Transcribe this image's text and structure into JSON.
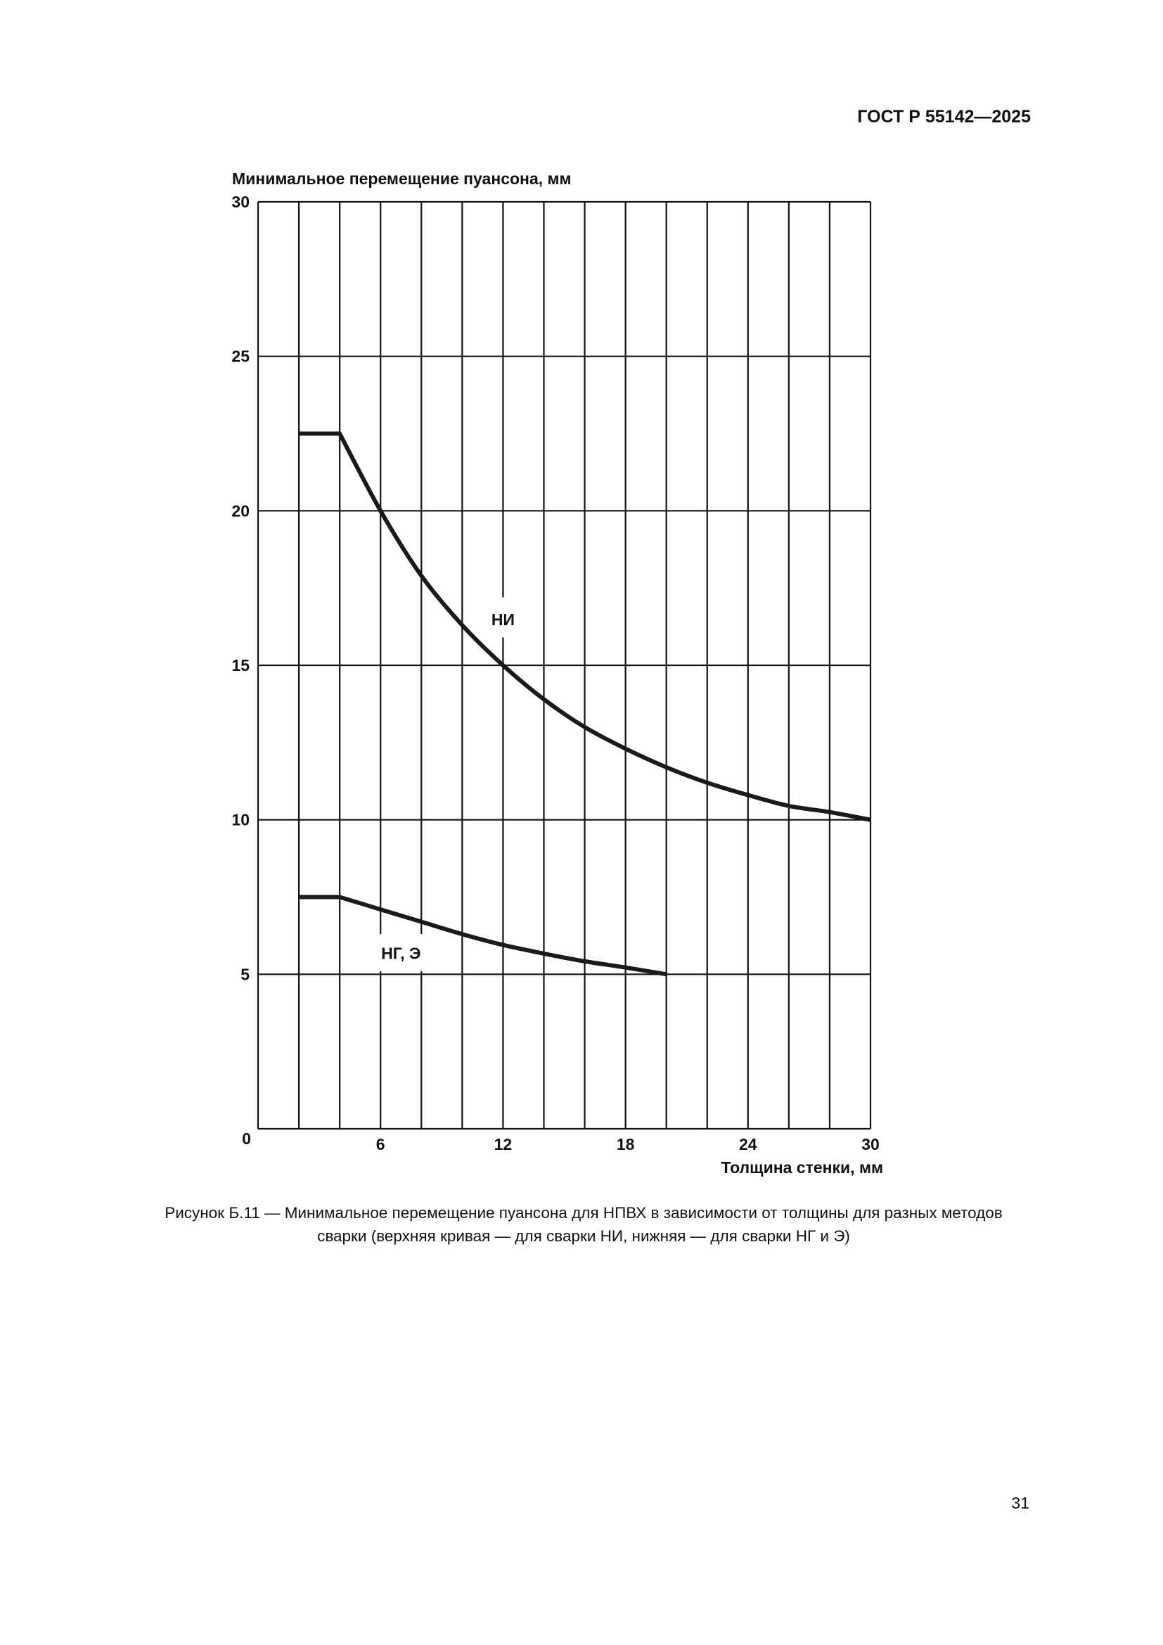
{
  "header": {
    "doc_id": "ГОСТ Р 55142—2025"
  },
  "page_number": "31",
  "caption": {
    "line1": "Рисунок Б.11 — Минимальное перемещение пуансона для НПВХ в зависимости от толщины для разных методов",
    "line2": "сварки (верхняя кривая — для сварки НИ, нижняя — для сварки НГ и Э)"
  },
  "chart_data": {
    "type": "line",
    "ylabel": "Минимальное перемещение пуансона, мм",
    "xlabel": "Толщина стенки, мм",
    "xlim": [
      0,
      30
    ],
    "ylim": [
      0,
      30
    ],
    "x_ticks": [
      "6",
      "12",
      "18",
      "24",
      "30"
    ],
    "y_ticks": [
      "0",
      "5",
      "10",
      "15",
      "20",
      "25",
      "30"
    ],
    "x_grid_step": 2,
    "y_grid_step": 5,
    "grid": true,
    "series": [
      {
        "name": "НИ",
        "x": [
          2,
          4,
          6,
          8,
          10,
          12,
          14,
          16,
          18,
          20,
          22,
          24,
          26,
          28,
          30
        ],
        "y": [
          22.5,
          22.5,
          20.0,
          17.9,
          16.3,
          15.0,
          13.9,
          13.0,
          12.3,
          11.7,
          11.2,
          10.8,
          10.45,
          10.25,
          10.0
        ]
      },
      {
        "name": "НГ, Э",
        "x": [
          2,
          4,
          6,
          8,
          10,
          12,
          14,
          16,
          18,
          20
        ],
        "y": [
          7.5,
          7.5,
          7.1,
          6.7,
          6.3,
          5.95,
          5.67,
          5.42,
          5.22,
          5.0
        ]
      }
    ]
  }
}
